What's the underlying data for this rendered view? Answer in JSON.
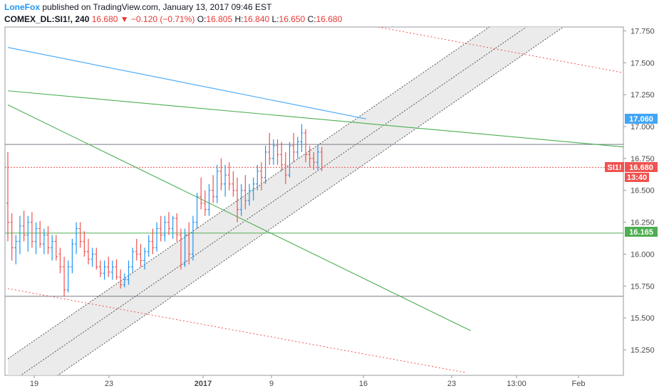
{
  "header": {
    "author": "LoneFox",
    "published_text": " published on TradingView.com, January 13, 2017 09:46 EST",
    "symbol": "COMEX_DL:SI1!, 240",
    "last": "16.680",
    "change": "−0.120 (−0.71%)",
    "open_label": "O:",
    "open": "16.805",
    "high_label": "H:",
    "high": "16.840",
    "low_label": "L:",
    "low": "16.650",
    "close_label": "C:",
    "close": "16.680",
    "down_arrow": "▼"
  },
  "badges": {
    "blue_line": "17.060",
    "symbol_tag": "SI1!",
    "price": "16.680",
    "countdown": "13:40",
    "green_line": "16.165"
  },
  "colors": {
    "up": "#2196f3",
    "down": "#ef5350",
    "green": "#4caf50",
    "blue_line": "#42a5f5",
    "channel": "#b2b5be",
    "red_dotted": "#ef5350"
  },
  "chart_data": {
    "type": "candlestick-ohlc",
    "symbol": "COMEX_DL:SI1!",
    "interval": "240",
    "ylim": [
      15.05,
      17.78
    ],
    "y_ticks": [
      "17.750",
      "17.500",
      "17.250",
      "17.000",
      "16.750",
      "16.500",
      "16.250",
      "16.000",
      "15.750",
      "15.500",
      "15.250"
    ],
    "x_ticks": [
      {
        "label": "19",
        "bold": false
      },
      {
        "label": "23",
        "bold": false
      },
      {
        "label": "2017",
        "bold": true
      },
      {
        "label": "9",
        "bold": false
      },
      {
        "label": "16",
        "bold": false
      },
      {
        "label": "23",
        "bold": false
      },
      {
        "label": "13:00",
        "bold": false
      },
      {
        "label": "Feb",
        "bold": false
      }
    ],
    "horizontal_levels": [
      {
        "price": 16.86,
        "color": "#787b86",
        "style": "solid"
      },
      {
        "price": 16.68,
        "color": "#ef5350",
        "style": "dotted"
      },
      {
        "price": 16.165,
        "color": "#4caf50",
        "style": "solid"
      },
      {
        "price": 15.67,
        "color": "#787b86",
        "style": "solid"
      }
    ],
    "trendlines": [
      {
        "name": "blue",
        "from": [
          0,
          17.62
        ],
        "to": [
          89,
          17.06
        ]
      },
      {
        "name": "green-upper",
        "from": [
          0,
          17.28
        ],
        "to": [
          160,
          16.82
        ]
      },
      {
        "name": "green-lower",
        "from": [
          0,
          17.17
        ],
        "to": [
          115,
          15.4
        ]
      },
      {
        "name": "red-top",
        "from": [
          92,
          17.78
        ],
        "to": [
          160,
          17.38
        ]
      },
      {
        "name": "red-bottom",
        "from": [
          0,
          15.73
        ],
        "to": [
          114,
          15.07
        ]
      }
    ],
    "channel": {
      "lower_line": [
        [
          0,
          14.78
        ],
        [
          138,
          17.78
        ]
      ],
      "upper_line": [
        [
          0,
          15.18
        ],
        [
          138,
          18.18
        ]
      ],
      "middle_line": [
        [
          0,
          14.98
        ],
        [
          138,
          17.98
        ]
      ]
    },
    "bars": [
      [
        16.4,
        16.8,
        16.1,
        16.25
      ],
      [
        16.25,
        16.32,
        15.95,
        16.05
      ],
      [
        16.05,
        16.15,
        15.92,
        16.1
      ],
      [
        16.1,
        16.3,
        16.0,
        16.22
      ],
      [
        16.22,
        16.34,
        16.1,
        16.15
      ],
      [
        16.15,
        16.3,
        16.02,
        16.25
      ],
      [
        16.25,
        16.33,
        16.05,
        16.1
      ],
      [
        16.1,
        16.25,
        16.0,
        16.2
      ],
      [
        16.2,
        16.26,
        16.05,
        16.08
      ],
      [
        16.08,
        16.2,
        16.0,
        16.15
      ],
      [
        16.15,
        16.22,
        16.0,
        16.05
      ],
      [
        16.05,
        16.15,
        15.95,
        16.1
      ],
      [
        16.1,
        16.15,
        15.95,
        15.98
      ],
      [
        16.0,
        16.05,
        15.85,
        15.9
      ],
      [
        15.9,
        15.98,
        15.67,
        15.72
      ],
      [
        15.72,
        15.95,
        15.7,
        15.9
      ],
      [
        15.9,
        16.12,
        15.85,
        16.08
      ],
      [
        16.08,
        16.25,
        16.0,
        16.2
      ],
      [
        16.2,
        16.25,
        16.05,
        16.1
      ],
      [
        16.1,
        16.18,
        15.98,
        16.02
      ],
      [
        16.02,
        16.12,
        15.92,
        15.96
      ],
      [
        15.96,
        16.05,
        15.9,
        16.0
      ],
      [
        16.0,
        16.05,
        15.88,
        15.9
      ],
      [
        15.9,
        15.95,
        15.82,
        15.85
      ],
      [
        15.85,
        15.95,
        15.8,
        15.9
      ],
      [
        15.9,
        15.98,
        15.82,
        15.86
      ],
      [
        15.86,
        15.95,
        15.8,
        15.9
      ],
      [
        15.9,
        15.96,
        15.8,
        15.82
      ],
      [
        15.82,
        15.88,
        15.73,
        15.76
      ],
      [
        15.76,
        15.85,
        15.74,
        15.8
      ],
      [
        15.8,
        15.95,
        15.76,
        15.9
      ],
      [
        15.9,
        16.05,
        15.86,
        16.02
      ],
      [
        16.02,
        16.12,
        15.95,
        16.0
      ],
      [
        16.0,
        16.08,
        15.9,
        15.95
      ],
      [
        15.95,
        16.05,
        15.88,
        16.02
      ],
      [
        16.02,
        16.15,
        15.98,
        16.1
      ],
      [
        16.1,
        16.2,
        16.0,
        16.05
      ],
      [
        16.05,
        16.25,
        16.02,
        16.2
      ],
      [
        16.2,
        16.3,
        16.1,
        16.15
      ],
      [
        16.15,
        16.3,
        16.1,
        16.25
      ],
      [
        16.25,
        16.33,
        16.15,
        16.2
      ],
      [
        16.2,
        16.3,
        16.12,
        16.28
      ],
      [
        16.28,
        16.32,
        16.1,
        16.15
      ],
      [
        16.15,
        16.2,
        15.88,
        15.92
      ],
      [
        15.92,
        16.2,
        15.9,
        16.15
      ],
      [
        16.15,
        16.25,
        15.92,
        16.0
      ],
      [
        16.0,
        16.3,
        15.95,
        16.25
      ],
      [
        16.25,
        16.48,
        16.2,
        16.45
      ],
      [
        16.45,
        16.6,
        16.35,
        16.4
      ],
      [
        16.4,
        16.5,
        16.3,
        16.35
      ],
      [
        16.35,
        16.55,
        16.3,
        16.5
      ],
      [
        16.5,
        16.62,
        16.4,
        16.45
      ],
      [
        16.45,
        16.7,
        16.4,
        16.65
      ],
      [
        16.65,
        16.75,
        16.5,
        16.55
      ],
      [
        16.55,
        16.7,
        16.45,
        16.62
      ],
      [
        16.62,
        16.72,
        16.5,
        16.55
      ],
      [
        16.55,
        16.65,
        16.45,
        16.5
      ],
      [
        16.5,
        16.6,
        16.25,
        16.35
      ],
      [
        16.35,
        16.55,
        16.3,
        16.5
      ],
      [
        16.5,
        16.62,
        16.35,
        16.42
      ],
      [
        16.42,
        16.55,
        16.38,
        16.5
      ],
      [
        16.5,
        16.6,
        16.42,
        16.55
      ],
      [
        16.55,
        16.7,
        16.5,
        16.65
      ],
      [
        16.65,
        16.72,
        16.5,
        16.6
      ],
      [
        16.6,
        16.85,
        16.55,
        16.8
      ],
      [
        16.8,
        16.95,
        16.7,
        16.75
      ],
      [
        16.75,
        16.9,
        16.7,
        16.85
      ],
      [
        16.85,
        16.9,
        16.7,
        16.78
      ],
      [
        16.78,
        16.88,
        16.65,
        16.7
      ],
      [
        16.7,
        16.8,
        16.55,
        16.62
      ],
      [
        16.62,
        16.88,
        16.6,
        16.85
      ],
      [
        16.85,
        16.95,
        16.72,
        16.8
      ],
      [
        16.8,
        16.92,
        16.75,
        16.88
      ],
      [
        16.88,
        17.02,
        16.8,
        16.95
      ],
      [
        16.95,
        16.98,
        16.72,
        16.78
      ],
      [
        16.78,
        16.85,
        16.68,
        16.75
      ],
      [
        16.75,
        16.8,
        16.66,
        16.72
      ],
      [
        16.72,
        16.85,
        16.66,
        16.8
      ],
      [
        16.8,
        16.84,
        16.65,
        16.68
      ]
    ]
  }
}
